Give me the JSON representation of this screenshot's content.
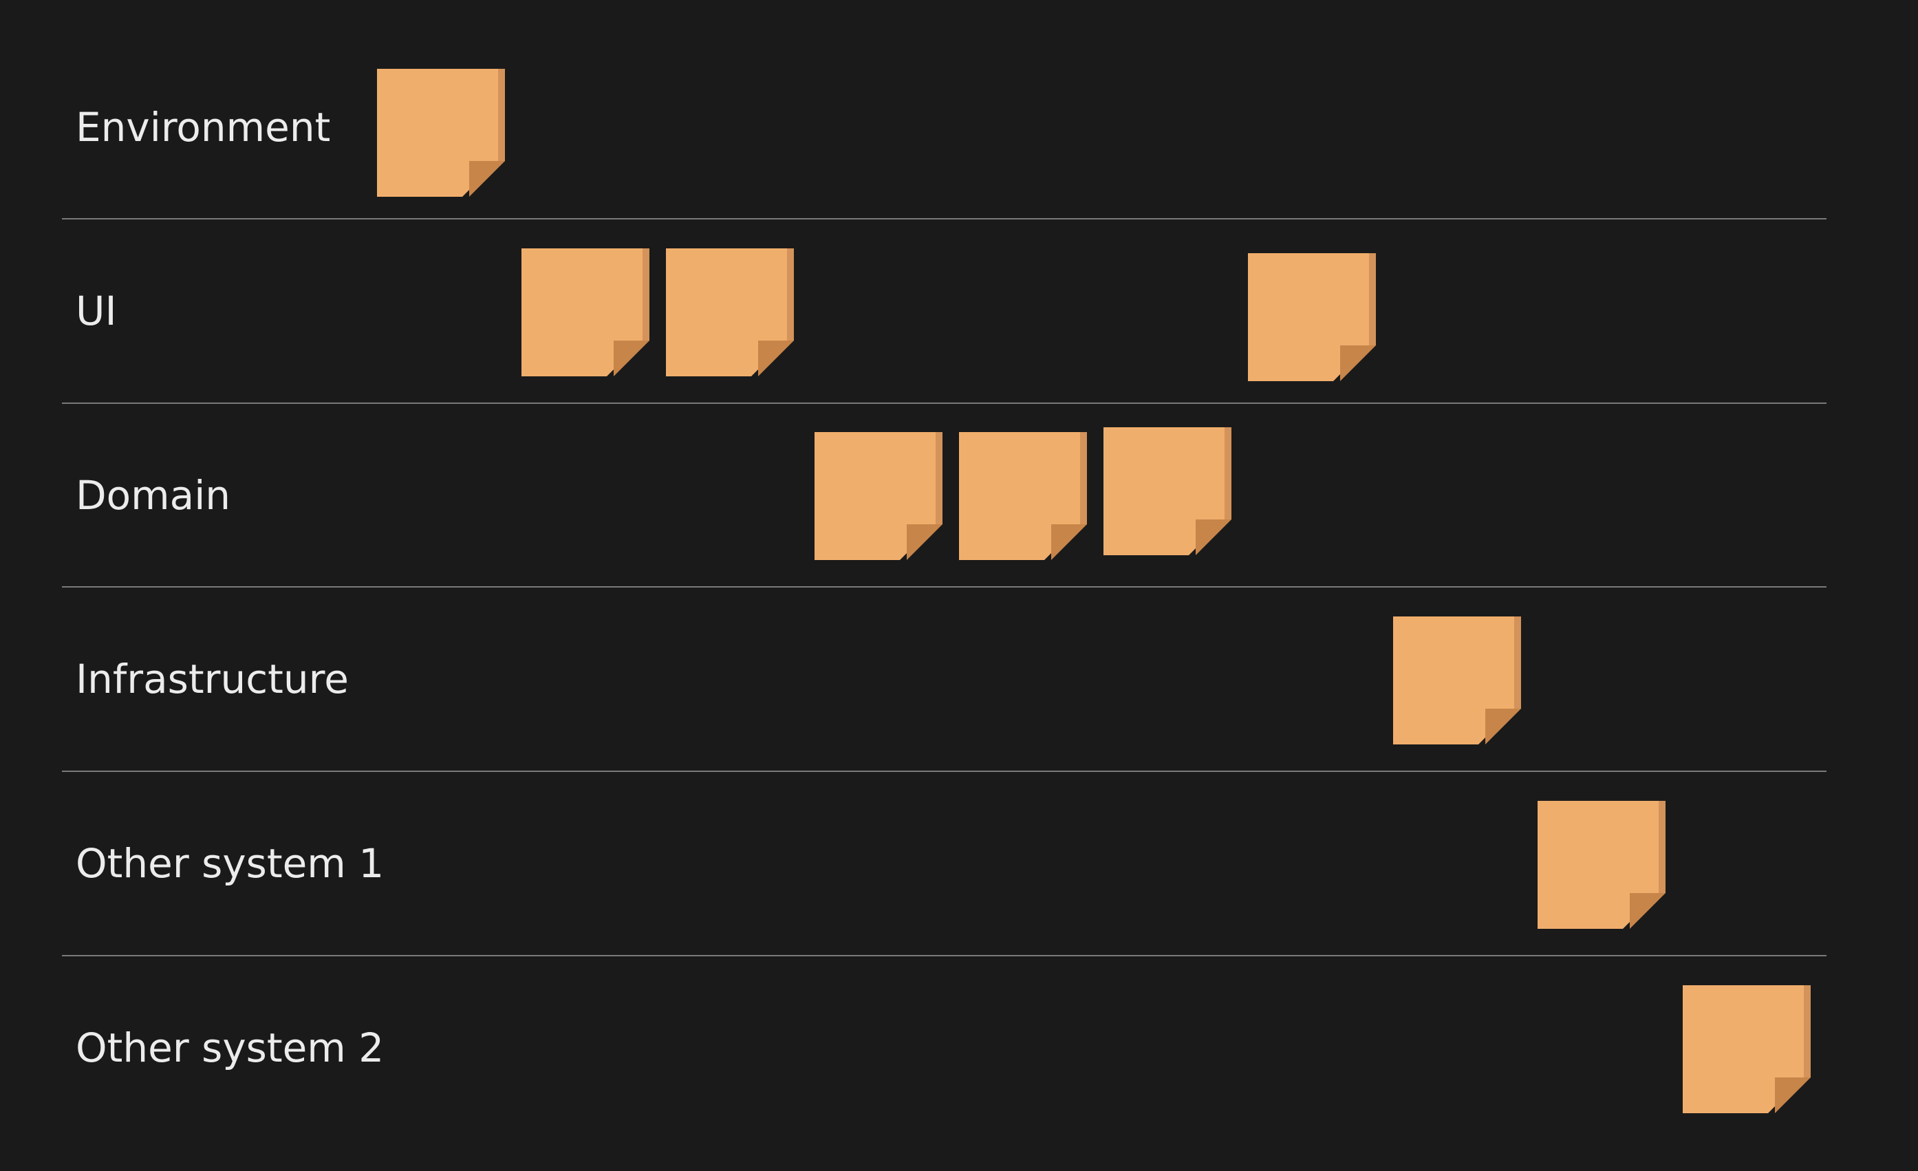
{
  "colors": {
    "background": "#1a1a1a",
    "lane_text": "#ececec",
    "divider": "#7a7a7a",
    "sticky_note": "#f0ae6c",
    "sticky_note_edge": "#d3935a",
    "sticky_note_curl": "#c8854a"
  },
  "lanes": [
    {
      "label": "Environment",
      "note_icon": "sticky-note-icon",
      "note_count": 1
    },
    {
      "label": "UI",
      "note_icon": "sticky-note-icon",
      "note_count": 3
    },
    {
      "label": "Domain",
      "note_icon": "sticky-note-icon",
      "note_count": 3
    },
    {
      "label": "Infrastructure",
      "note_icon": "sticky-note-icon",
      "note_count": 1
    },
    {
      "label": "Other system 1",
      "note_icon": "sticky-note-icon",
      "note_count": 1
    },
    {
      "label": "Other system 2",
      "note_icon": "sticky-note-icon",
      "note_count": 1
    }
  ]
}
